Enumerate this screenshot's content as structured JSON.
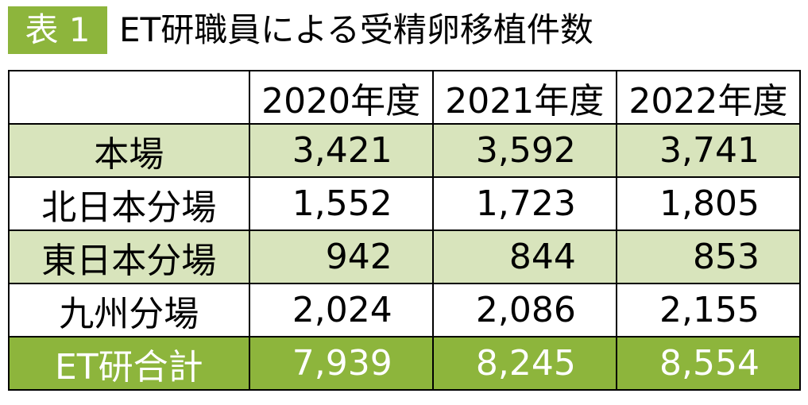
{
  "header": {
    "label": "表 1",
    "title": "ET研職員による受精卵移植件数"
  },
  "table": {
    "columns": [
      "2020年度",
      "2021年度",
      "2022年度"
    ],
    "rows": [
      {
        "name": "本場",
        "values": [
          "3,421",
          "3,592",
          "3,741"
        ]
      },
      {
        "name": "北日本分場",
        "values": [
          "1,552",
          "1,723",
          "1,805"
        ]
      },
      {
        "name": "東日本分場",
        "values": [
          "942",
          "844",
          "853"
        ]
      },
      {
        "name": "九州分場",
        "values": [
          "2,024",
          "2,086",
          "2,155"
        ]
      },
      {
        "name": "ET研合計",
        "values": [
          "7,939",
          "8,245",
          "8,554"
        ]
      }
    ]
  }
}
